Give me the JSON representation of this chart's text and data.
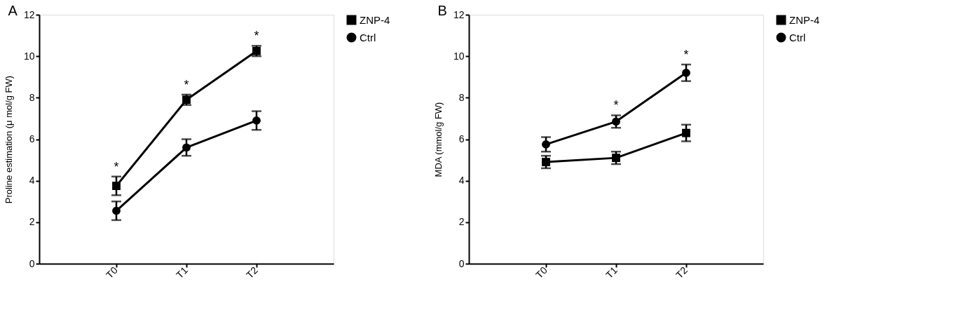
{
  "chart_data": [
    {
      "type": "line",
      "title": "A",
      "ylabel": "Proline estimation (μ mol/g FW)",
      "categories": [
        "T0",
        "T1",
        "T2"
      ],
      "ylim": [
        0,
        12
      ],
      "yticks": [
        0,
        2,
        4,
        6,
        8,
        10,
        12
      ],
      "grid": false,
      "legend": "top right",
      "line_style": "solid",
      "series": [
        {
          "name": "ZNP-4",
          "color": "#000000",
          "marker": "square",
          "values": [
            3.75,
            7.9,
            10.25
          ],
          "errors": [
            0.45,
            0.25,
            0.25
          ]
        },
        {
          "name": "Ctrl",
          "color": "#000000",
          "marker": "circle",
          "values": [
            2.55,
            5.6,
            6.9
          ],
          "errors": [
            0.45,
            0.4,
            0.45
          ]
        }
      ],
      "annotations": [
        {
          "text": "*",
          "x": "T0",
          "y": 3.75
        },
        {
          "text": "*",
          "x": "T1",
          "y": 7.9
        },
        {
          "text": "*",
          "x": "T2",
          "y": 10.25
        }
      ]
    },
    {
      "type": "line",
      "title": "B",
      "ylabel": "MDA (mmol/g FW)",
      "categories": [
        "T0",
        "T1",
        "T2"
      ],
      "ylim": [
        0,
        12
      ],
      "yticks": [
        0,
        2,
        4,
        6,
        8,
        10,
        12
      ],
      "grid": false,
      "legend": "top right",
      "line_style": "solid",
      "series": [
        {
          "name": "ZNP-4",
          "color": "#000000",
          "marker": "square",
          "values": [
            4.9,
            5.1,
            6.3
          ],
          "errors": [
            0.3,
            0.3,
            0.4
          ]
        },
        {
          "name": "Ctrl",
          "color": "#000000",
          "marker": "circle",
          "values": [
            5.75,
            6.85,
            9.2
          ],
          "errors": [
            0.35,
            0.3,
            0.4
          ]
        }
      ],
      "annotations": [
        {
          "text": "*",
          "x": "T1",
          "y": 6.85
        },
        {
          "text": "*",
          "x": "T2",
          "y": 9.2
        }
      ]
    }
  ]
}
